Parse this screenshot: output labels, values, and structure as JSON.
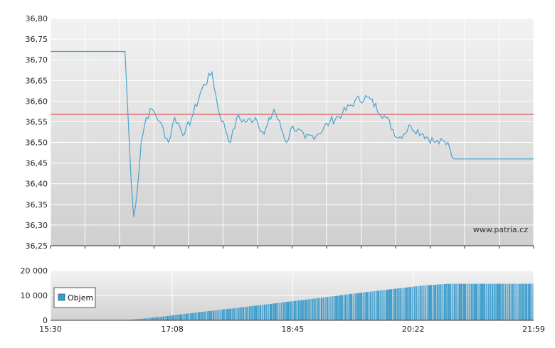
{
  "chart_data": [
    {
      "type": "line",
      "watermark": "www.patria.cz",
      "ylim": [
        36.25,
        36.8
      ],
      "y_ticks": [
        "36,25",
        "36,30",
        "36,35",
        "36,40",
        "36,45",
        "36,50",
        "36,55",
        "36,60",
        "36,65",
        "36,70",
        "36,75",
        "36,80"
      ],
      "reference_line": {
        "value": 36.568,
        "color": "#e05a5a"
      },
      "series": [
        {
          "color": "#4aa3cc",
          "x": [
            "15:30",
            "16:30",
            "16:35",
            "16:37",
            "16:40",
            "16:43",
            "16:47",
            "16:52",
            "16:58",
            "17:05",
            "17:10",
            "17:18",
            "17:25",
            "17:32",
            "17:40",
            "17:45",
            "17:55",
            "18:00",
            "18:08",
            "18:15",
            "18:22",
            "18:30",
            "18:40",
            "18:45",
            "18:55",
            "19:05",
            "19:15",
            "19:25",
            "19:35",
            "19:45",
            "20:00",
            "20:10",
            "20:20",
            "20:30",
            "20:40",
            "20:50",
            "20:55",
            "21:59"
          ],
          "y": [
            36.72,
            36.72,
            36.4,
            36.32,
            36.39,
            36.5,
            36.56,
            36.58,
            36.55,
            36.5,
            36.56,
            36.52,
            36.57,
            36.63,
            36.67,
            36.58,
            36.5,
            36.56,
            36.55,
            36.56,
            36.52,
            36.58,
            36.5,
            36.54,
            36.51,
            36.52,
            36.55,
            36.57,
            36.6,
            36.61,
            36.56,
            36.51,
            36.54,
            36.52,
            36.5,
            36.5,
            36.46,
            36.46
          ]
        }
      ]
    },
    {
      "type": "bar",
      "ylim": [
        0,
        20000
      ],
      "y_ticks": [
        "0",
        "10 000",
        "20 000"
      ],
      "x_ticks": [
        "15:30",
        "17:08",
        "18:45",
        "20:22",
        "21:59"
      ],
      "legend": {
        "label": "Objem",
        "position": "left"
      },
      "series": [
        {
          "name": "Objem",
          "color": "#3a9ccc",
          "x": [
            "16:30",
            "17:00",
            "17:30",
            "18:00",
            "18:30",
            "19:00",
            "19:30",
            "20:00",
            "20:30",
            "20:50",
            "21:59"
          ],
          "y": [
            0,
            1500,
            3300,
            5000,
            6800,
            8600,
            10500,
            12300,
            14000,
            14700,
            14700
          ]
        }
      ]
    }
  ]
}
